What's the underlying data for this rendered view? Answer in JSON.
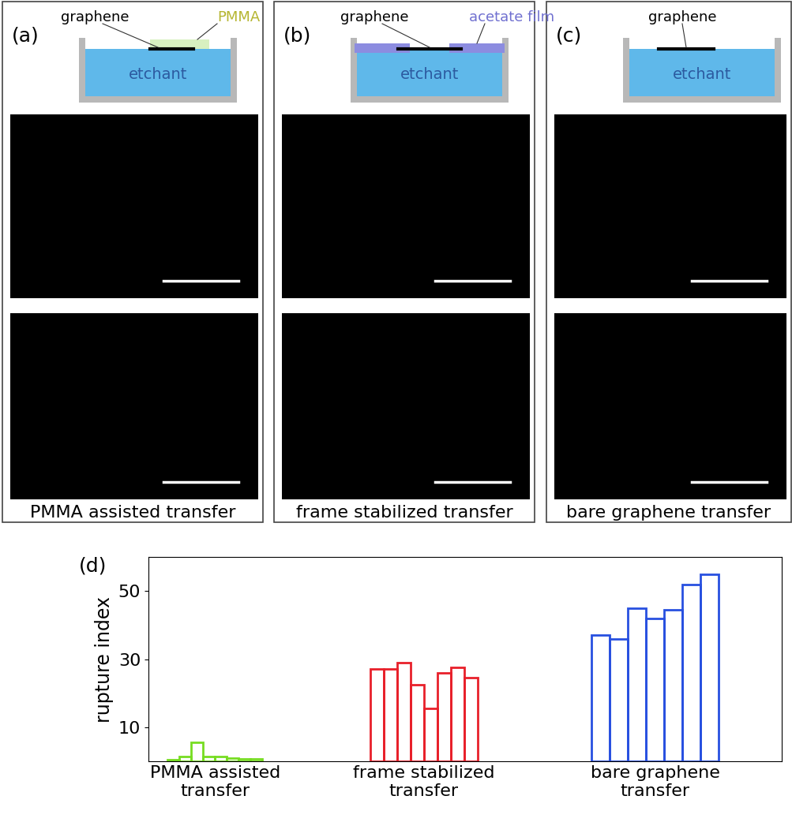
{
  "panels": [
    {
      "label": "(a)",
      "graphene": "graphene",
      "support": "PMMA",
      "etchant": "etchant",
      "caption": "PMMA assisted transfer"
    },
    {
      "label": "(b)",
      "graphene": "graphene",
      "support": "acetate film",
      "etchant": "etchant",
      "caption": "frame stabilized transfer"
    },
    {
      "label": "(c)",
      "graphene": "graphene",
      "etchant": "etchant",
      "caption": "bare graphene transfer"
    }
  ],
  "chart_data": {
    "type": "bar",
    "annotations": [
      "(d)"
    ],
    "y_label": "rupture index",
    "ylim": [
      0,
      60
    ],
    "yticks": [
      10,
      30,
      50
    ],
    "series": [
      {
        "name": "PMMA assisted\ntransfer",
        "color": "#77dd22",
        "values": [
          0.5,
          1.5,
          5.5,
          1.5,
          1.5,
          1.0,
          0.8,
          0.7
        ]
      },
      {
        "name": "frame stabilized\ntransfer",
        "color": "#e8202a",
        "values": [
          27,
          27,
          29,
          22.5,
          15.5,
          26,
          27.5,
          24.5
        ]
      },
      {
        "name": "bare graphene\ntransfer",
        "color": "#2850e0",
        "values": [
          37,
          36,
          45,
          42,
          44.5,
          52,
          55
        ]
      }
    ]
  }
}
